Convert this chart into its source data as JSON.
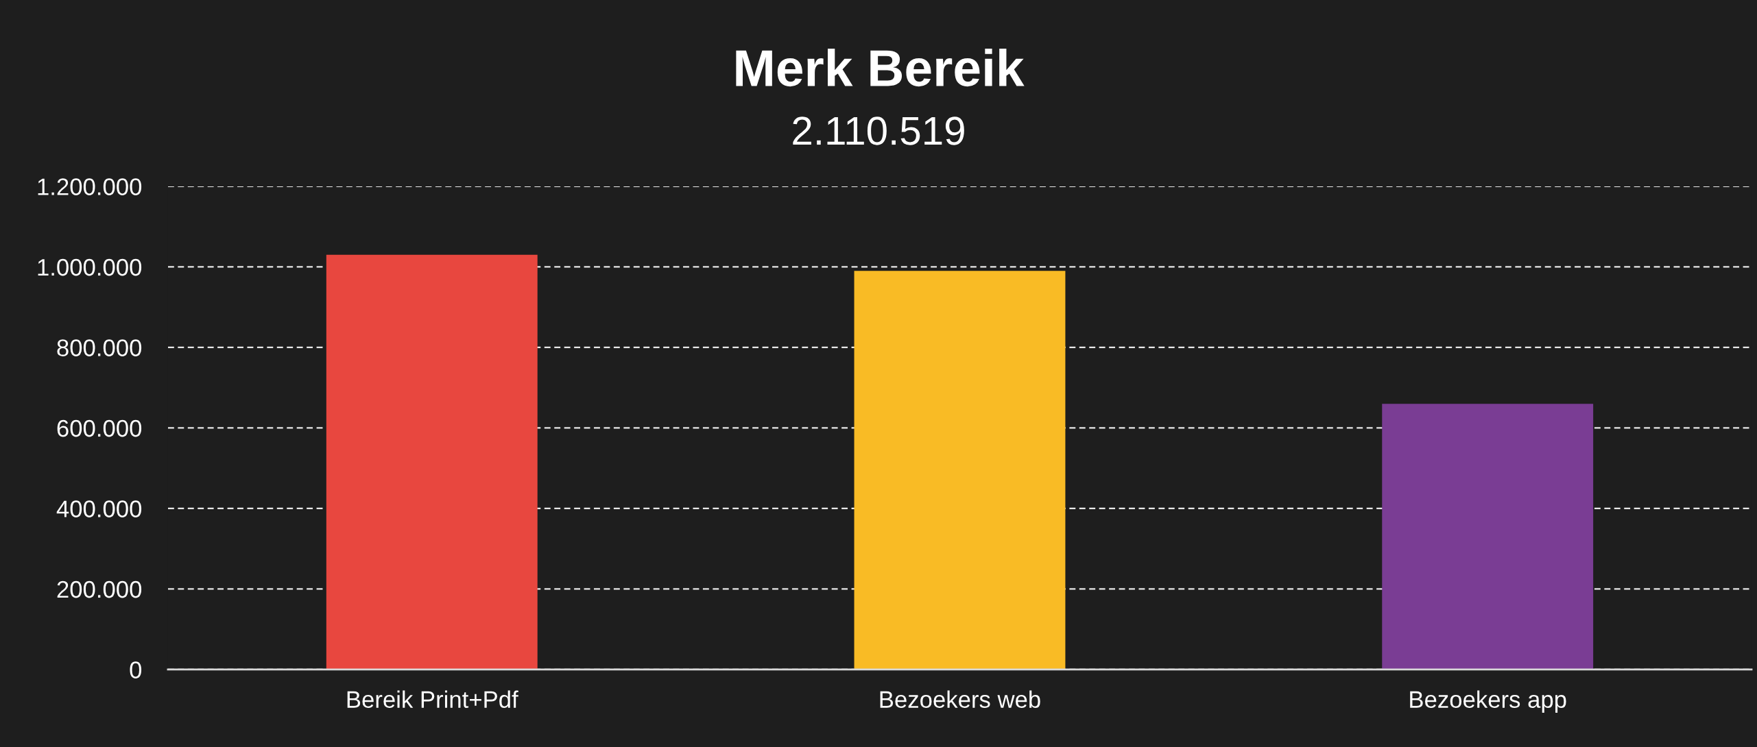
{
  "chart_data": {
    "type": "bar",
    "title": "Merk Bereik",
    "subtitle": "2.110.519",
    "categories": [
      "Bereik Print+Pdf",
      "Bezoekers web",
      "Bezoekers app"
    ],
    "values": [
      1030000,
      990000,
      660000
    ],
    "colors": [
      "#e8473f",
      "#f9bb25",
      "#7a3d94"
    ],
    "ylim": [
      0,
      1200000
    ],
    "yticks": [
      0,
      {
        "value": 200000,
        "label": "200.000"
      },
      {
        "value": 400000,
        "label": "400.000"
      },
      {
        "value": 600000,
        "label": "600.000"
      },
      {
        "value": 800000,
        "label": "800.000"
      },
      {
        "value": 1000000,
        "label": "1.000.000"
      },
      {
        "value": 1200000,
        "label": "1.200.000"
      }
    ],
    "grid": "y"
  }
}
